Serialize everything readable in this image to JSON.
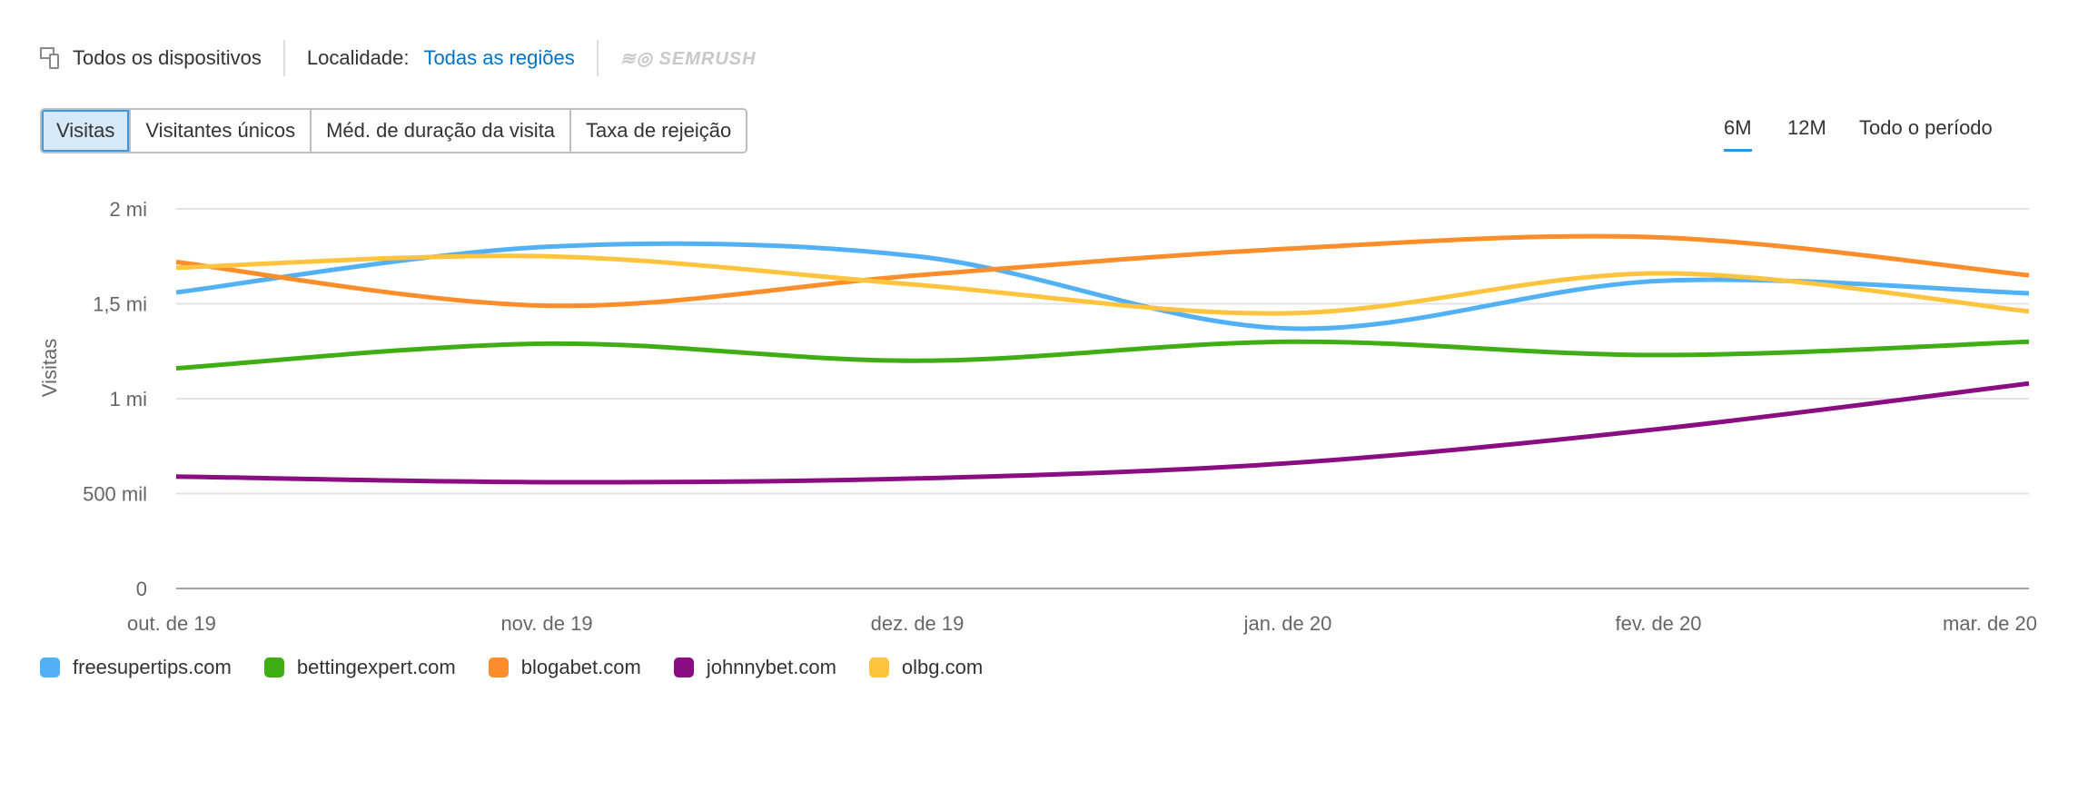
{
  "header": {
    "devices": "Todos os dispositivos",
    "locality_label": "Localidade:",
    "locality_value": "Todas as regiões",
    "logo": "SEMRUSH"
  },
  "metric_tabs": [
    "Visitas",
    "Visitantes únicos",
    "Méd. de duração da visita",
    "Taxa de rejeição"
  ],
  "period_tabs": [
    "6M",
    "12M",
    "Todo o período"
  ],
  "chart_data": {
    "type": "line",
    "ylabel": "Visitas",
    "ylim": [
      0,
      2000000
    ],
    "yticks": [
      {
        "v": 0,
        "label": "0"
      },
      {
        "v": 500000,
        "label": "500 mil"
      },
      {
        "v": 1000000,
        "label": "1 mi"
      },
      {
        "v": 1500000,
        "label": "1,5 mi"
      },
      {
        "v": 2000000,
        "label": "2 mi"
      }
    ],
    "categories": [
      "out. de 19",
      "nov. de 19",
      "dez. de 19",
      "jan. de 20",
      "fev. de 20",
      "mar. de 20"
    ],
    "grid": true,
    "legend": "bottom-left",
    "series": [
      {
        "name": "freesupertips.com",
        "color": "#52b0f5",
        "values": [
          1560000,
          1800000,
          1750000,
          1370000,
          1620000,
          1555000
        ]
      },
      {
        "name": "bettingexpert.com",
        "color": "#3fae15",
        "values": [
          1160000,
          1290000,
          1200000,
          1300000,
          1230000,
          1300000
        ]
      },
      {
        "name": "blogabet.com",
        "color": "#fb8d2b",
        "values": [
          1720000,
          1490000,
          1650000,
          1790000,
          1850000,
          1650000
        ]
      },
      {
        "name": "johnnybet.com",
        "color": "#8a0e82",
        "values": [
          590000,
          560000,
          580000,
          660000,
          840000,
          1080000
        ]
      },
      {
        "name": "olbg.com",
        "color": "#fec43e",
        "values": [
          1690000,
          1750000,
          1600000,
          1450000,
          1660000,
          1460000
        ]
      }
    ]
  }
}
